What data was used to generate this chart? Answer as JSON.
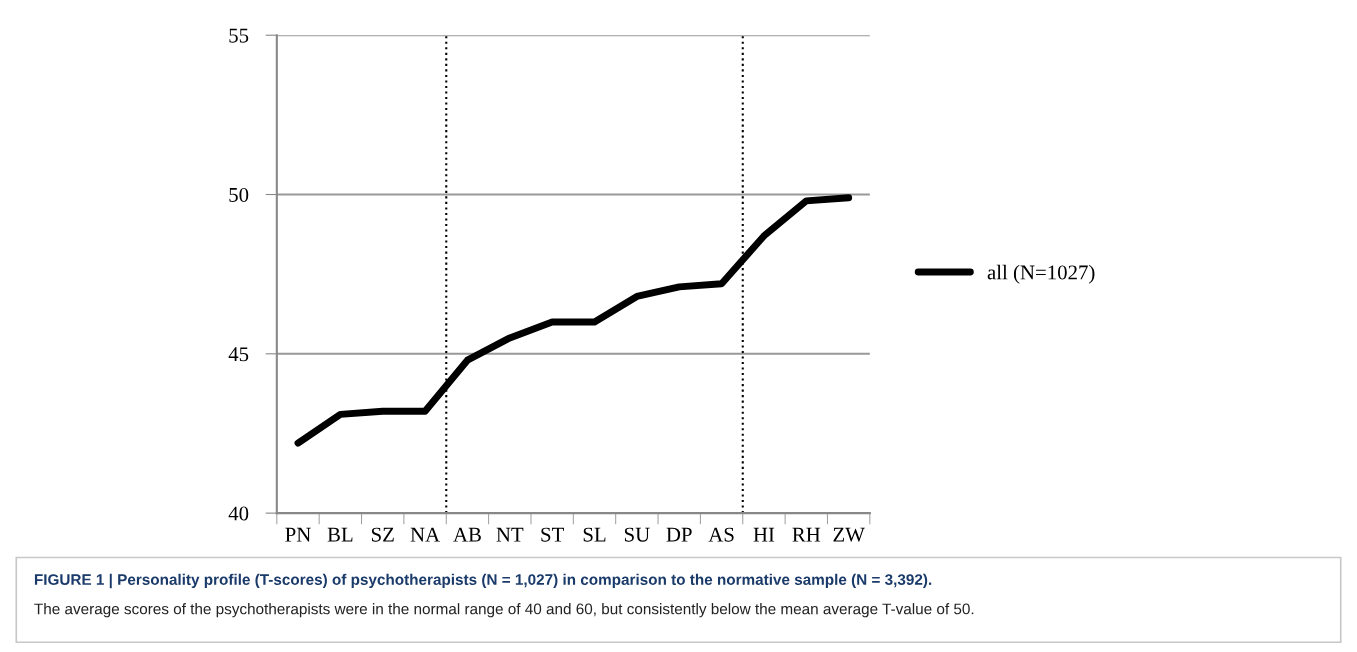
{
  "chart_data": {
    "type": "line",
    "title": "FIGURE 1 | Personality profile (T-scores) of psychotherapists (N = 1,027) in comparison to the normative sample (N = 3,392).",
    "annotations": [
      "The average scores of the psychotherapists were in the normal range of 40 and 60, but consistently below the mean average T-value of 50."
    ],
    "categories": [
      "PN",
      "BL",
      "SZ",
      "NA",
      "AB",
      "NT",
      "ST",
      "SL",
      "SU",
      "DP",
      "AS",
      "HI",
      "RH",
      "ZW"
    ],
    "series": [
      {
        "name": "all (N=1027)",
        "color": "#000000",
        "values": [
          42.2,
          43.1,
          43.2,
          43.2,
          44.8,
          45.5,
          46.0,
          46.0,
          46.8,
          47.1,
          47.2,
          48.7,
          49.8,
          49.9
        ]
      }
    ],
    "ylim": [
      40,
      55
    ],
    "yticks": [
      40,
      45,
      50,
      55
    ],
    "grid": "y",
    "legend": "right",
    "marker": "none",
    "line_style": "solid"
  }
}
